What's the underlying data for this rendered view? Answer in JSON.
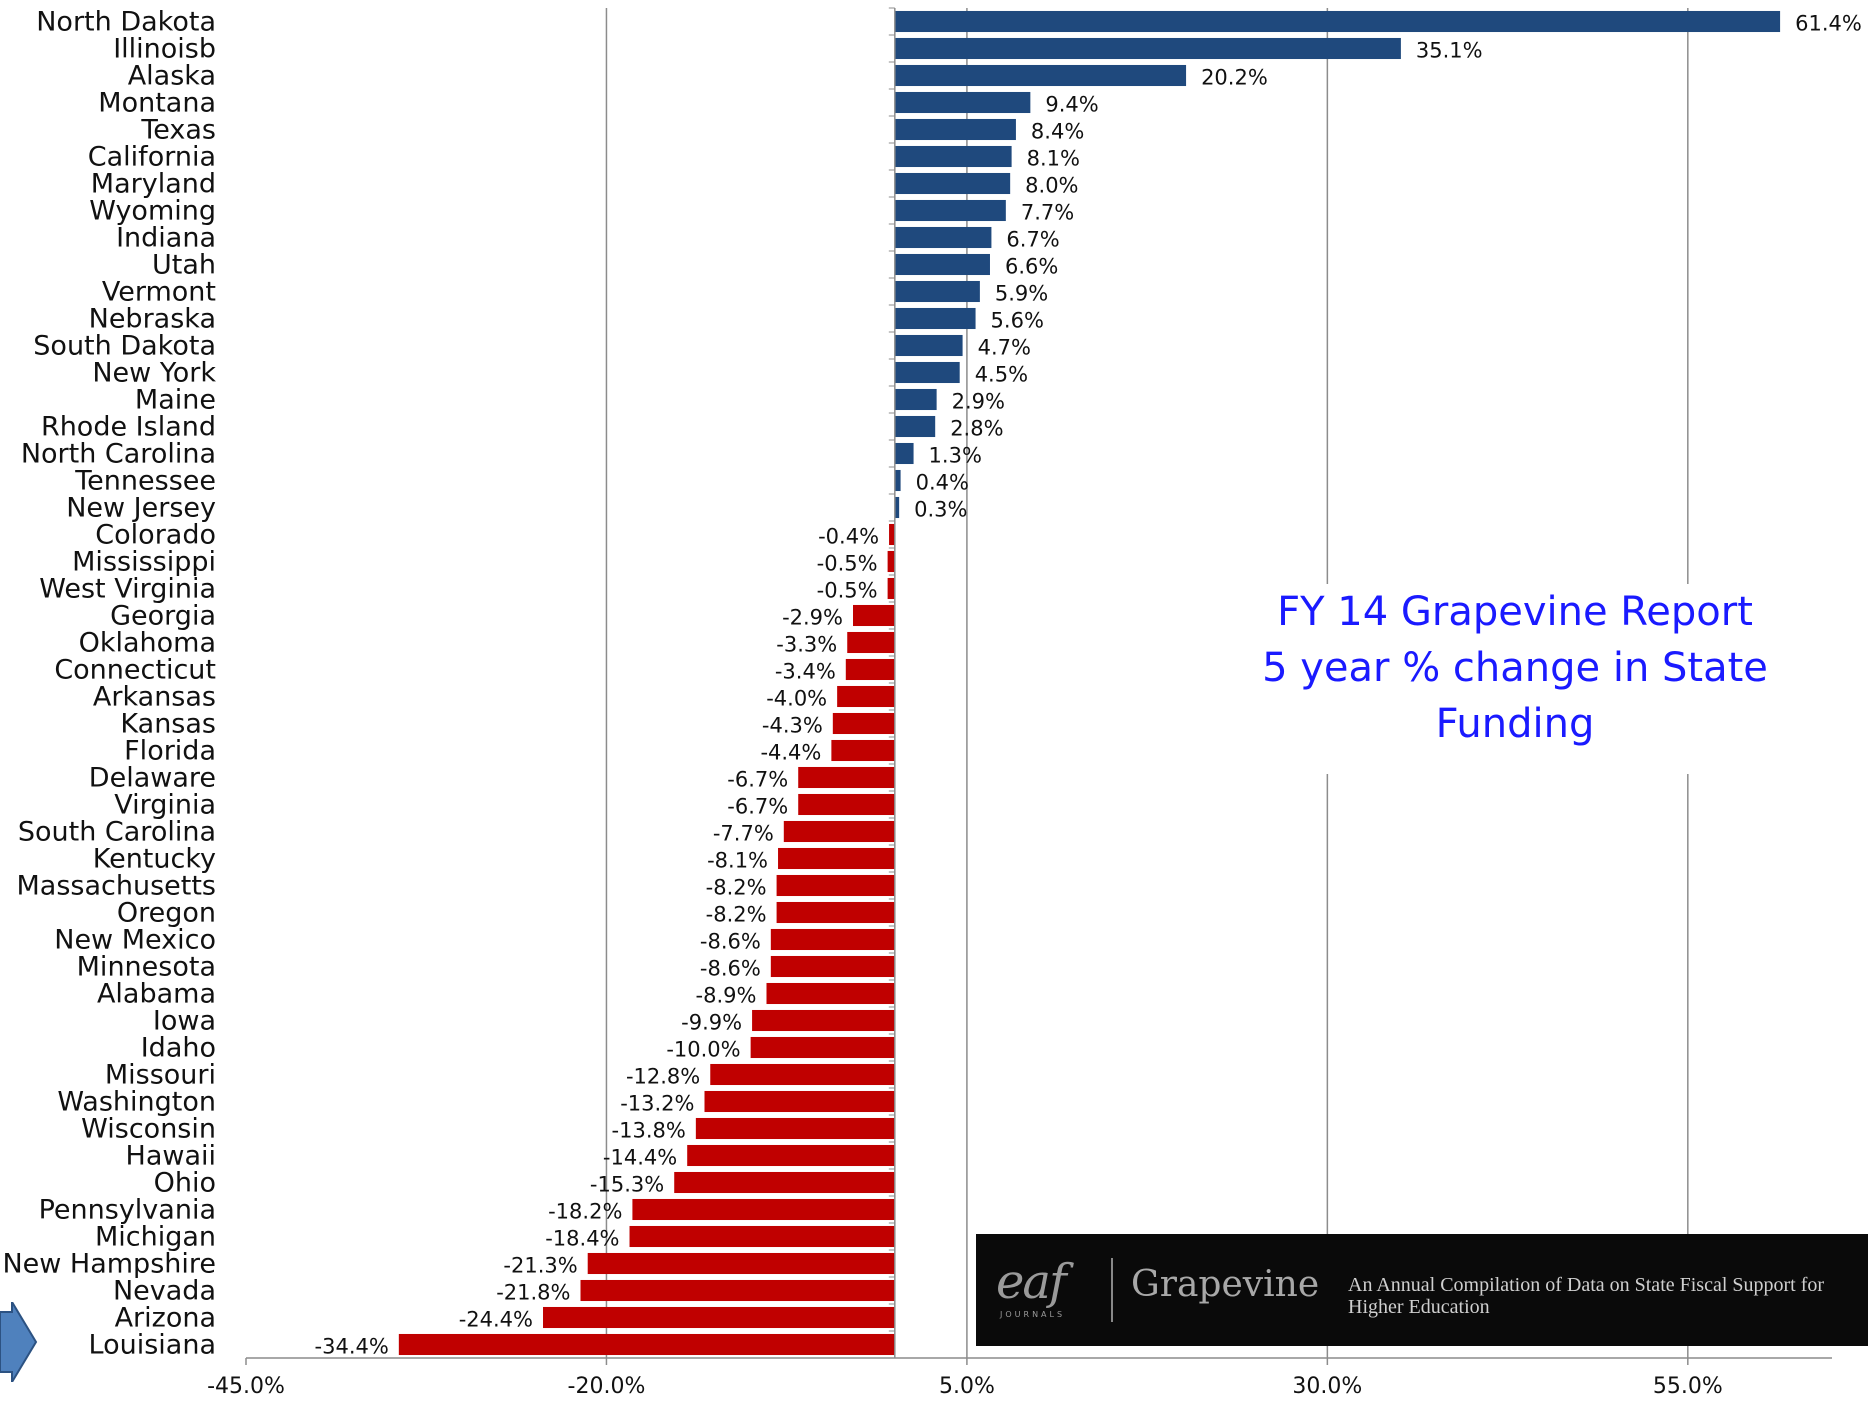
{
  "chart_data": {
    "type": "bar",
    "orientation": "horizontal",
    "title": [
      "FY 14 Grapevine Report",
      "5 year % change in State",
      "Funding"
    ],
    "xlim": [
      -45,
      65
    ],
    "x_ticks": [
      -45,
      -20,
      5,
      30,
      55
    ],
    "x_tick_labels": [
      "-45.0%",
      "-20.0%",
      "5.0%",
      "30.0%",
      "55.0%"
    ],
    "grid": "vertical major gridlines",
    "positive_color": "#1f497d",
    "negative_color": "#c00000",
    "categories": [
      "North Dakota",
      "Illinoisb",
      "Alaska",
      "Montana",
      "Texas",
      "California",
      "Maryland",
      "Wyoming",
      "Indiana",
      "Utah",
      "Vermont",
      "Nebraska",
      "South Dakota",
      "New York",
      "Maine",
      "Rhode Island",
      "North Carolina",
      "Tennessee",
      "New Jersey",
      "Colorado",
      "Mississippi",
      "West Virginia",
      "Georgia",
      "Oklahoma",
      "Connecticut",
      "Arkansas",
      "Kansas",
      "Florida",
      "Delaware",
      "Virginia",
      "South Carolina",
      "Kentucky",
      "Massachusetts",
      "Oregon",
      "New Mexico",
      "Minnesota",
      "Alabama",
      "Iowa",
      "Idaho",
      "Missouri",
      "Washington",
      "Wisconsin",
      "Hawaii",
      "Ohio",
      "Pennsylvania",
      "Michigan",
      "New Hampshire",
      "Nevada",
      "Arizona",
      "Louisiana"
    ],
    "values": [
      61.4,
      35.1,
      20.2,
      9.4,
      8.4,
      8.1,
      8.0,
      7.7,
      6.7,
      6.6,
      5.9,
      5.6,
      4.7,
      4.5,
      2.9,
      2.8,
      1.3,
      0.4,
      0.3,
      -0.4,
      -0.5,
      -0.5,
      -2.9,
      -3.3,
      -3.4,
      -4.0,
      -4.3,
      -4.4,
      -6.7,
      -6.7,
      -7.7,
      -8.1,
      -8.2,
      -8.2,
      -8.6,
      -8.6,
      -8.9,
      -9.9,
      -10.0,
      -12.8,
      -13.2,
      -13.8,
      -14.4,
      -15.3,
      -18.2,
      -18.4,
      -21.3,
      -21.8,
      -24.4,
      -34.4
    ],
    "value_labels": [
      "61.4%",
      "35.1%",
      "20.2%",
      "9.4%",
      "8.4%",
      "8.1%",
      "8.0%",
      "7.7%",
      "6.7%",
      "6.6%",
      "5.9%",
      "5.6%",
      "4.7%",
      "4.5%",
      "2.9%",
      "2.8%",
      "1.3%",
      "0.4%",
      "0.3%",
      "-0.4%",
      "-0.5%",
      "-0.5%",
      "-2.9%",
      "-3.3%",
      "-3.4%",
      "-4.0%",
      "-4.3%",
      "-4.4%",
      "-6.7%",
      "-6.7%",
      "-7.7%",
      "-8.1%",
      "-8.2%",
      "-8.2%",
      "-8.6%",
      "-8.6%",
      "-8.9%",
      "-9.9%",
      "-10.0%",
      "-12.8%",
      "-13.2%",
      "-13.8%",
      "-14.4%",
      "-15.3%",
      "-18.2%",
      "-18.4%",
      "-21.3%",
      "-21.8%",
      "-24.4%",
      "-34.4%"
    ]
  },
  "banner": {
    "logo_text": "eaf",
    "logo_sub": "JOURNALS",
    "brand": "Grapevine",
    "tagline": "An Annual Compilation of Data on State Fiscal Support for Higher Education",
    "background": "#0a0a0a"
  },
  "nav_arrow": {
    "icon": "arrow-right-icon",
    "color": "#4f81bd"
  }
}
